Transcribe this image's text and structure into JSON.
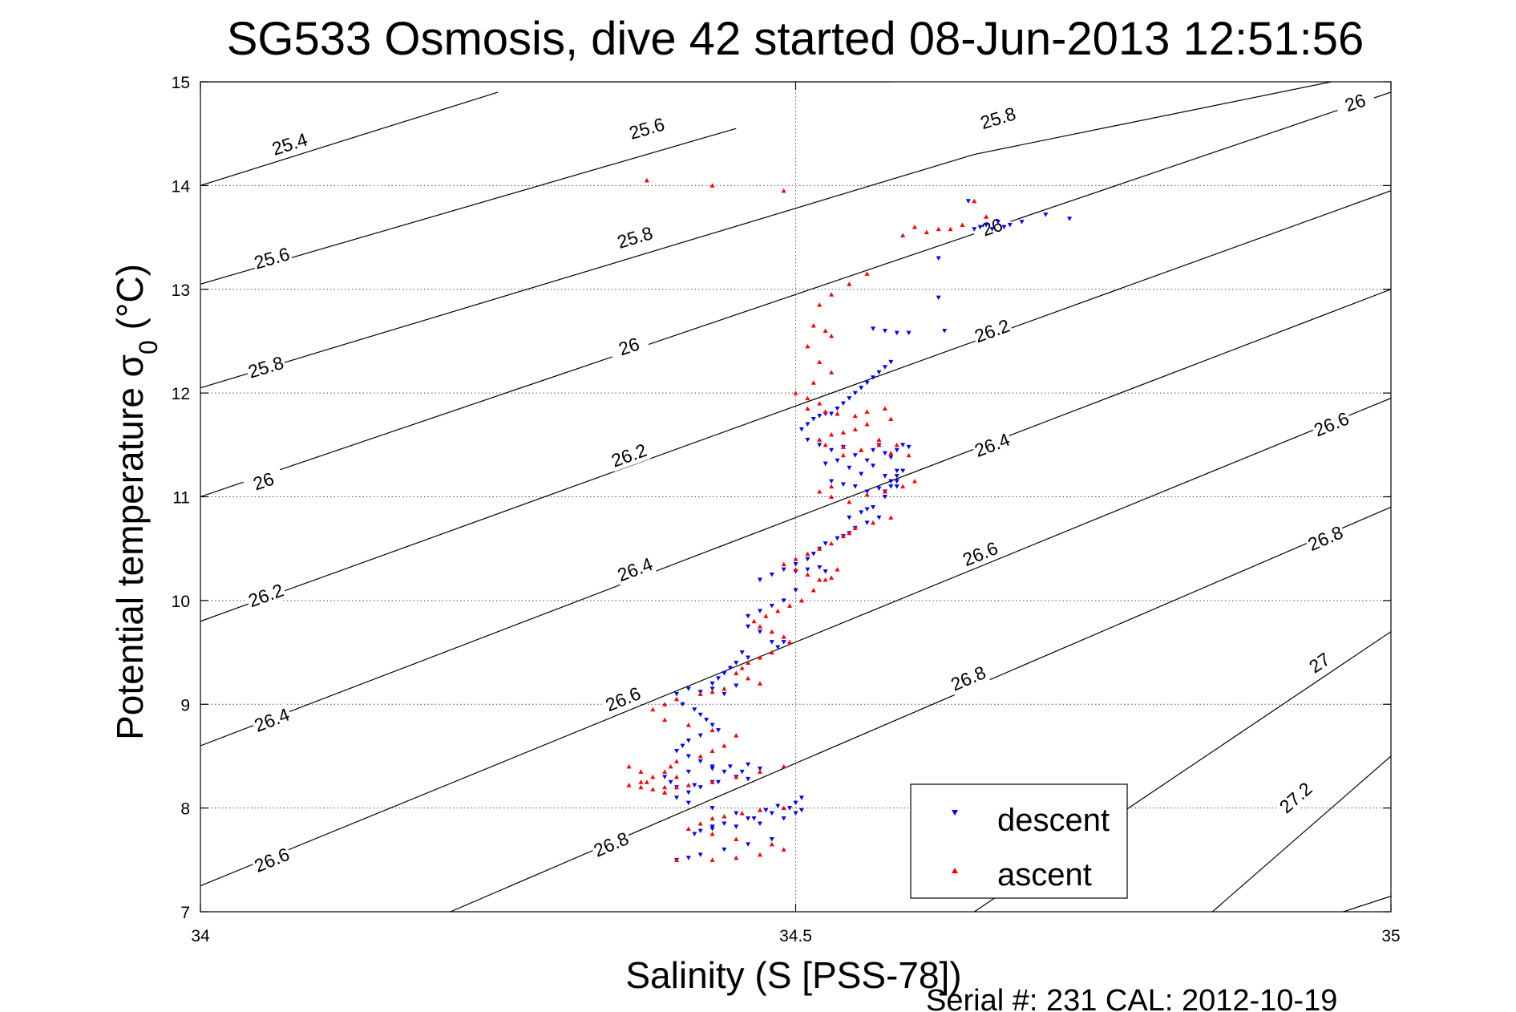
{
  "chart_data": {
    "type": "scatter",
    "title": "SG533 Osmosis, dive 42 started 08-Jun-2013 12:51:56",
    "xlabel": "Salinity (S [PSS-78])",
    "ylabel_main": "Potential temperature σ",
    "ylabel_sub": "0",
    "ylabel_unit": " (°C)",
    "xlim": [
      34,
      35
    ],
    "ylim": [
      7,
      15
    ],
    "x_ticks": [
      34,
      34.5,
      35
    ],
    "x_tick_labels": [
      "34",
      "34.5",
      "35"
    ],
    "y_ticks": [
      7,
      8,
      9,
      10,
      11,
      12,
      13,
      14,
      15
    ],
    "y_tick_labels": [
      "7",
      "8",
      "9",
      "10",
      "11",
      "12",
      "13",
      "14",
      "15"
    ],
    "grid": true,
    "legend_position": "bottom-right",
    "footer": "Serial #: 231  CAL: 2012-10-19",
    "contours": [
      {
        "level": "25.4",
        "lines": [
          [
            [
              34.0,
              14.0
            ],
            [
              34.25,
              14.9
            ]
          ]
        ],
        "labels": [
          [
            34.075,
            14.4
          ]
        ]
      },
      {
        "level": "25.6",
        "lines": [
          [
            [
              34.0,
              13.05
            ],
            [
              34.45,
              14.55
            ]
          ],
          [
            [
              34.58,
              15.0
            ],
            [
              34.0,
              15.0
            ]
          ]
        ],
        "labels": [
          [
            34.06,
            13.3
          ],
          [
            34.375,
            14.55
          ]
        ]
      },
      {
        "level": "25.8",
        "lines": [
          [
            [
              34.0,
              12.05
            ],
            [
              34.65,
              14.3
            ]
          ],
          [
            [
              34.65,
              14.3
            ],
            [
              34.95,
              15.0
            ]
          ]
        ],
        "labels": [
          [
            34.055,
            12.25
          ],
          [
            34.365,
            13.5
          ],
          [
            34.67,
            14.65
          ]
        ]
      },
      {
        "level": "26",
        "lines": [
          [
            [
              34.0,
              11.0
            ],
            [
              35.0,
              14.9
            ]
          ]
        ],
        "labels": [
          [
            34.053,
            11.15
          ],
          [
            34.36,
            12.45
          ],
          [
            34.665,
            13.6
          ],
          [
            34.97,
            14.8
          ]
        ]
      },
      {
        "level": "26.2",
        "lines": [
          [
            [
              34.0,
              9.8
            ],
            [
              35.0,
              13.95
            ]
          ]
        ],
        "labels": [
          [
            34.055,
            10.05
          ],
          [
            34.36,
            11.4
          ],
          [
            34.665,
            12.6
          ]
        ]
      },
      {
        "level": "26.4",
        "lines": [
          [
            [
              34.0,
              8.6
            ],
            [
              35.0,
              13.0
            ]
          ]
        ],
        "labels": [
          [
            34.06,
            8.85
          ],
          [
            34.365,
            10.3
          ],
          [
            34.665,
            11.5
          ]
        ]
      },
      {
        "level": "26.6",
        "lines": [
          [
            [
              34.0,
              7.25
            ],
            [
              35.0,
              11.95
            ]
          ]
        ],
        "labels": [
          [
            34.06,
            7.5
          ],
          [
            34.355,
            9.05
          ],
          [
            34.655,
            10.45
          ],
          [
            34.95,
            11.7
          ]
        ]
      },
      {
        "level": "26.8",
        "lines": [
          [
            [
              34.21,
              7.0
            ],
            [
              35.0,
              10.9
            ]
          ]
        ],
        "labels": [
          [
            34.345,
            7.65
          ],
          [
            34.645,
            9.25
          ],
          [
            34.945,
            10.6
          ]
        ]
      },
      {
        "level": "27",
        "lines": [
          [
            [
              34.65,
              7.0
            ],
            [
              35.0,
              9.7
            ]
          ]
        ],
        "labels": [
          [
            34.94,
            9.4
          ]
        ]
      },
      {
        "level": "27.2",
        "lines": [
          [
            [
              34.85,
              7.0
            ],
            [
              35.0,
              8.5
            ]
          ]
        ],
        "labels": [
          [
            34.92,
            8.1
          ]
        ]
      },
      {
        "level": "",
        "lines": [
          [
            [
              34.96,
              7.0
            ],
            [
              35.0,
              7.15
            ]
          ]
        ],
        "labels": []
      }
    ],
    "series": [
      {
        "name": "descent",
        "color": "#0000ff",
        "marker": "triangle-down",
        "x": [
          34.645,
          34.655,
          34.66,
          34.665,
          34.67,
          34.675,
          34.68,
          34.69,
          34.71,
          34.73,
          34.62,
          34.65,
          34.565,
          34.575,
          34.585,
          34.595,
          34.62,
          34.625,
          34.58,
          34.575,
          34.57,
          34.565,
          34.56,
          34.555,
          34.55,
          34.545,
          34.54,
          34.535,
          34.53,
          34.525,
          34.52,
          34.515,
          34.51,
          34.505,
          34.51,
          34.52,
          34.53,
          34.54,
          34.55,
          34.56,
          34.565,
          34.57,
          34.575,
          34.58,
          34.585,
          34.59,
          34.595,
          34.585,
          34.575,
          34.565,
          34.555,
          34.545,
          34.535,
          34.525,
          34.53,
          34.54,
          34.55,
          34.56,
          34.57,
          34.58,
          34.585,
          34.59,
          34.585,
          34.575,
          34.565,
          34.555,
          34.545,
          34.56,
          34.575,
          34.58,
          34.585,
          34.57,
          34.56,
          34.55,
          34.545,
          34.54,
          34.535,
          34.525,
          34.52,
          34.515,
          34.51,
          34.5,
          34.49,
          34.48,
          34.47,
          34.5,
          34.51,
          34.52,
          34.525,
          34.5,
          34.49,
          34.48,
          34.47,
          34.46,
          34.46,
          34.47,
          34.48,
          34.485,
          34.49,
          34.46,
          34.455,
          34.45,
          34.445,
          34.44,
          34.435,
          34.43,
          34.43,
          34.44,
          34.45,
          34.42,
          34.41,
          34.4,
          34.405,
          34.415,
          34.42,
          34.425,
          34.43,
          34.435,
          34.42,
          34.41,
          34.405,
          34.4,
          34.41,
          34.42,
          34.43,
          34.44,
          34.45,
          34.46,
          34.43,
          34.415,
          34.4,
          34.395,
          34.39,
          34.41,
          34.43,
          34.445,
          34.455,
          34.46,
          34.47,
          34.45,
          34.435,
          34.42,
          34.41,
          34.4,
          34.41,
          34.43,
          34.45,
          34.465,
          34.475,
          34.485,
          34.495,
          34.5,
          34.505,
          34.48,
          34.46,
          34.44,
          34.43,
          34.42,
          34.415,
          34.43,
          34.45,
          34.47,
          34.49,
          34.5,
          34.505,
          34.48,
          34.46,
          34.44,
          34.42,
          34.41,
          34.4
        ],
        "y": [
          13.85,
          13.6,
          13.62,
          13.58,
          13.65,
          13.6,
          13.62,
          13.65,
          13.72,
          13.68,
          13.3,
          13.58,
          12.62,
          12.6,
          12.58,
          12.58,
          12.92,
          12.6,
          12.3,
          12.25,
          12.2,
          12.15,
          12.1,
          12.05,
          12.0,
          11.95,
          11.9,
          11.85,
          11.8,
          11.8,
          11.78,
          11.75,
          11.7,
          11.65,
          11.55,
          11.5,
          11.45,
          11.48,
          11.4,
          11.35,
          11.45,
          11.5,
          11.42,
          11.38,
          11.45,
          11.5,
          11.48,
          11.25,
          11.2,
          11.3,
          11.22,
          11.28,
          11.35,
          11.32,
          11.15,
          11.12,
          11.1,
          11.05,
          11.08,
          11.15,
          11.2,
          11.25,
          11.1,
          11.0,
          10.9,
          10.85,
          10.8,
          10.88,
          11.05,
          11.1,
          11.15,
          10.8,
          10.75,
          10.7,
          10.65,
          10.62,
          10.6,
          10.55,
          10.5,
          10.45,
          10.4,
          10.35,
          10.3,
          10.25,
          10.2,
          10.28,
          10.3,
          10.32,
          10.28,
          10.1,
          10.0,
          9.95,
          9.9,
          9.85,
          9.75,
          9.7,
          9.6,
          9.55,
          9.6,
          9.45,
          9.5,
          9.4,
          9.35,
          9.3,
          9.25,
          9.2,
          9.15,
          9.1,
          9.18,
          9.12,
          9.15,
          9.1,
          9.0,
          8.95,
          8.9,
          8.85,
          8.8,
          8.75,
          8.7,
          8.65,
          8.6,
          8.55,
          8.5,
          8.45,
          8.4,
          8.35,
          8.3,
          8.28,
          8.25,
          8.22,
          8.2,
          8.25,
          8.3,
          8.35,
          8.38,
          8.4,
          8.35,
          8.42,
          8.38,
          8.3,
          8.25,
          8.2,
          8.15,
          8.1,
          8.05,
          8.0,
          7.95,
          7.9,
          7.98,
          8.02,
          8.0,
          8.05,
          8.1,
          7.95,
          7.9,
          7.85,
          7.82,
          7.78,
          7.75,
          7.8,
          7.82,
          7.85,
          7.9,
          7.95,
          7.98,
          7.7,
          7.65,
          7.6,
          7.55,
          7.52,
          7.5
        ]
      },
      {
        "name": "ascent",
        "color": "#ff0000",
        "marker": "triangle-up",
        "x": [
          34.375,
          34.43,
          34.49,
          34.65,
          34.63,
          34.61,
          34.59,
          34.6,
          34.62,
          34.64,
          34.66,
          34.56,
          34.545,
          34.53,
          34.52,
          34.515,
          34.525,
          34.53,
          34.51,
          34.52,
          34.53,
          34.515,
          34.5,
          34.51,
          34.52,
          34.51,
          34.525,
          34.535,
          34.55,
          34.56,
          34.575,
          34.58,
          34.56,
          34.55,
          34.54,
          34.53,
          34.52,
          34.525,
          34.54,
          34.555,
          34.57,
          34.58,
          34.595,
          34.585,
          34.57,
          34.555,
          34.54,
          34.53,
          34.52,
          34.53,
          34.545,
          34.56,
          34.575,
          34.59,
          34.6,
          34.58,
          34.565,
          34.55,
          34.545,
          34.54,
          34.53,
          34.52,
          34.51,
          34.5,
          34.49,
          34.5,
          34.51,
          34.52,
          34.53,
          34.535,
          34.525,
          34.515,
          34.505,
          34.495,
          34.485,
          34.475,
          34.465,
          34.47,
          34.48,
          34.49,
          34.495,
          34.48,
          34.47,
          34.46,
          34.455,
          34.45,
          34.46,
          34.47,
          34.44,
          34.43,
          34.42,
          34.4,
          34.39,
          34.38,
          34.39,
          34.41,
          34.43,
          34.45,
          34.44,
          34.43,
          34.42,
          34.4,
          34.395,
          34.39,
          34.38,
          34.37,
          34.36,
          34.37,
          34.38,
          34.39,
          34.4,
          34.37,
          34.36,
          34.375,
          34.39,
          34.41,
          34.43,
          34.45,
          34.47,
          34.49,
          34.49,
          34.47,
          34.455,
          34.44,
          34.43,
          34.42,
          34.41,
          34.43,
          34.45,
          34.48,
          34.49,
          34.47,
          34.45,
          34.43,
          34.4,
          34.39,
          34.4
        ],
        "y": [
          14.05,
          14.0,
          13.95,
          13.85,
          13.58,
          13.55,
          13.52,
          13.6,
          13.58,
          13.62,
          13.7,
          13.15,
          13.05,
          12.95,
          12.85,
          12.65,
          12.6,
          12.55,
          12.45,
          12.3,
          12.2,
          12.1,
          12.0,
          11.95,
          11.9,
          11.85,
          11.82,
          11.8,
          11.78,
          11.82,
          11.85,
          11.75,
          11.7,
          11.65,
          11.62,
          11.6,
          11.55,
          11.5,
          11.48,
          11.45,
          11.5,
          11.42,
          11.4,
          11.5,
          11.55,
          11.45,
          11.4,
          11.1,
          11.05,
          11.0,
          10.95,
          11.02,
          11.05,
          11.1,
          11.15,
          10.8,
          10.75,
          10.7,
          10.65,
          10.62,
          10.55,
          10.5,
          10.45,
          10.4,
          10.35,
          10.3,
          10.25,
          10.2,
          10.22,
          10.3,
          10.2,
          10.1,
          10.0,
          9.95,
          9.9,
          9.85,
          9.8,
          9.75,
          9.7,
          9.65,
          9.6,
          9.5,
          9.45,
          9.4,
          9.35,
          9.3,
          9.25,
          9.2,
          9.15,
          9.12,
          9.1,
          9.05,
          9.0,
          8.95,
          8.85,
          8.8,
          8.75,
          8.7,
          8.6,
          8.55,
          8.5,
          8.45,
          8.4,
          8.35,
          8.3,
          8.25,
          8.22,
          8.2,
          8.18,
          8.15,
          8.2,
          8.35,
          8.4,
          8.25,
          8.2,
          8.22,
          8.25,
          8.3,
          8.35,
          8.4,
          8.0,
          7.98,
          7.95,
          7.92,
          7.9,
          7.85,
          7.8,
          7.75,
          7.7,
          7.65,
          7.6,
          7.55,
          7.52,
          7.5,
          8.3,
          8.15,
          7.5
        ]
      }
    ]
  }
}
